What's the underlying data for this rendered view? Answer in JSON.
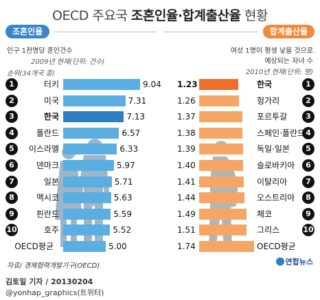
{
  "header": {
    "title_prefix": "OECD 주요국 ",
    "title_bold": "조혼인율·합계출산율",
    "title_suffix": " 현황"
  },
  "left_panel": {
    "badge": "조혼인율",
    "desc": "인구 1천명당 혼인건수",
    "unit_note": "2009년 현재(단위: 건수)",
    "rank_note": "순위(34개국 중)"
  },
  "right_panel": {
    "badge": "합계출산율",
    "desc_line1": "여성 1명이 평생 낳을 것으로",
    "desc_line2": "예상되는 자녀 수",
    "unit_note": "2010년 현재(단위: 명)"
  },
  "footer": {
    "source": "자료/ 경제협력개발기구(OECD)",
    "logo": "연합뉴스",
    "author": "김토일 기자 / 20130204",
    "handle": "@yonhap_graphics(트위터)"
  },
  "colors": {
    "blue_bar": "#5aaee2",
    "blue_highlight": "#2f7dc3",
    "orange_bar": "#f7a565",
    "orange_highlight": "#ee6f2a"
  },
  "chart_data": [
    {
      "type": "bar",
      "title": "조혼인율",
      "categories": [
        "터키",
        "미국",
        "한국",
        "폴란드",
        "이스라엘",
        "덴마크",
        "일본",
        "멕시코",
        "핀란드",
        "호주",
        "OECD평균"
      ],
      "ranks": [
        "1",
        "2",
        "3",
        "4",
        "5",
        "6",
        "7",
        "8",
        "9",
        "10",
        ""
      ],
      "values": [
        9.04,
        7.31,
        7.13,
        6.57,
        6.33,
        5.97,
        5.71,
        5.63,
        5.59,
        5.52,
        5.0
      ],
      "value_labels": [
        "9.04",
        "7.31",
        "7.13",
        "6.57",
        "6.33",
        "5.97",
        "5.71",
        "5.63",
        "5.59",
        "5.52",
        "5.00"
      ],
      "highlight": [
        "한국"
      ],
      "orientation": "horizontal"
    },
    {
      "type": "bar",
      "title": "합계출산율",
      "categories": [
        "한국",
        "헝가리",
        "포르투갈",
        "스페인·폴란드",
        "독일·일본",
        "슬로바키아",
        "이탈리아",
        "오스트리아",
        "체코",
        "그리스",
        "OECD평균"
      ],
      "ranks": [
        "1",
        "2",
        "3",
        "4",
        "5",
        "6",
        "7",
        "8",
        "9",
        "10",
        ""
      ],
      "values": [
        1.23,
        1.26,
        1.37,
        1.38,
        1.39,
        1.4,
        1.41,
        1.44,
        1.49,
        1.51,
        1.74
      ],
      "value_labels": [
        "1.23",
        "1.26",
        "1.37",
        "1.38",
        "1.39",
        "1.40",
        "1.41",
        "1.44",
        "1.49",
        "1.51",
        "1.74"
      ],
      "highlight": [
        "한국"
      ],
      "orientation": "horizontal"
    }
  ]
}
